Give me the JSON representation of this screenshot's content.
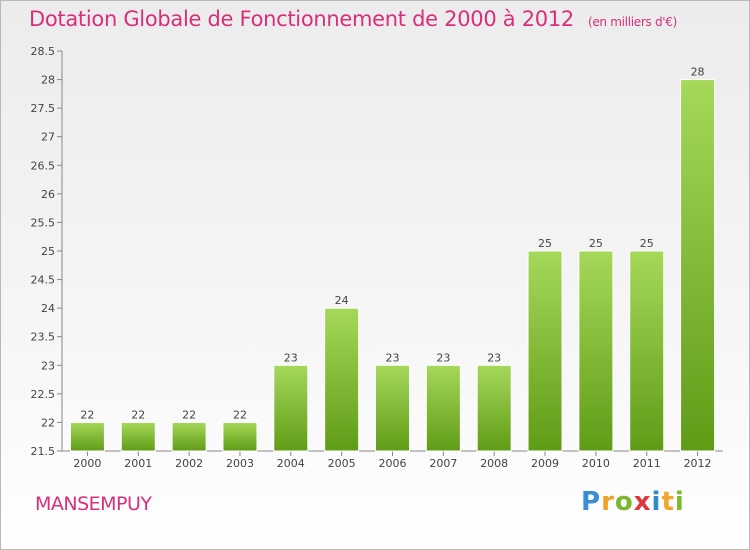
{
  "title": "Dotation Globale de Fonctionnement de 2000 à 2012",
  "subtitle": "(en milliers d'€)",
  "place": "MANSEMPUY",
  "logo": {
    "text": "Proxiti",
    "letters": [
      "P",
      "r",
      "o",
      "x",
      "i",
      "t",
      "i"
    ]
  },
  "colors": {
    "title": "#d72f7c",
    "bar_top": "#a6d85a",
    "bar_bottom": "#5f9c16",
    "axis": "#888888"
  },
  "chart_data": {
    "type": "bar",
    "categories": [
      "2000",
      "2001",
      "2002",
      "2003",
      "2004",
      "2005",
      "2006",
      "2007",
      "2008",
      "2009",
      "2010",
      "2011",
      "2012"
    ],
    "values": [
      22,
      22,
      22,
      22,
      23,
      24,
      23,
      23,
      23,
      25,
      25,
      25,
      28
    ],
    "data_labels": [
      "22",
      "22",
      "22",
      "22",
      "23",
      "24",
      "23",
      "23",
      "23",
      "25",
      "25",
      "25",
      "28"
    ],
    "y_ticks": [
      "21.5",
      "22",
      "22.5",
      "23",
      "23.5",
      "24",
      "24.5",
      "25",
      "25.5",
      "26",
      "26.5",
      "27",
      "27.5",
      "28",
      "28.5"
    ],
    "ylim": [
      21.5,
      28.5
    ],
    "grid": false,
    "xlabel": "",
    "ylabel": ""
  }
}
